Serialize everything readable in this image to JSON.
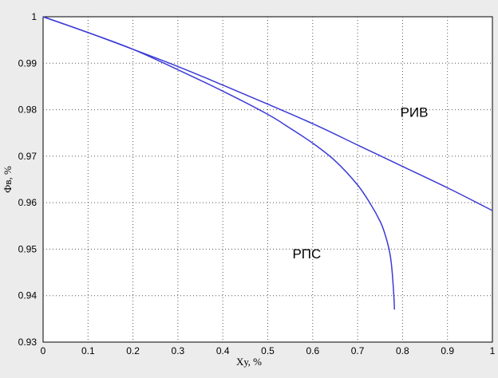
{
  "chart_data": {
    "type": "line",
    "title": "",
    "xlabel": "Xу, %",
    "ylabel": "Фв, %",
    "xlim": [
      0,
      1
    ],
    "ylim": [
      0.93,
      1
    ],
    "grid": true,
    "xticks": [
      "0",
      "0.1",
      "0.2",
      "0.3",
      "0.4",
      "0.5",
      "0.6",
      "0.7",
      "0.8",
      "0.9",
      "1"
    ],
    "yticks": [
      "0.93",
      "0.94",
      "0.95",
      "0.96",
      "0.97",
      "0.98",
      "0.99",
      "1"
    ],
    "series": [
      {
        "name": "РИВ",
        "color": "#3b3bd6",
        "x": [
          0,
          0.1,
          0.2,
          0.3,
          0.4,
          0.5,
          0.6,
          0.7,
          0.8,
          0.9,
          1.0
        ],
        "y": [
          1.0,
          0.9966,
          0.993,
          0.9893,
          0.9853,
          0.9812,
          0.977,
          0.9724,
          0.9678,
          0.9632,
          0.9583
        ]
      },
      {
        "name": "РПС",
        "color": "#3b3bd6",
        "x": [
          0,
          0.1,
          0.2,
          0.3,
          0.4,
          0.5,
          0.55,
          0.6,
          0.65,
          0.7,
          0.73,
          0.75,
          0.76,
          0.77,
          0.775,
          0.78,
          0.782
        ],
        "y": [
          1.0,
          0.9966,
          0.993,
          0.9886,
          0.984,
          0.979,
          0.976,
          0.9728,
          0.969,
          0.9638,
          0.9595,
          0.956,
          0.9535,
          0.95,
          0.947,
          0.941,
          0.937
        ]
      }
    ],
    "annotations": [
      {
        "text": "РИВ",
        "x": 0.795,
        "y": 0.9785
      },
      {
        "text": "РПС",
        "x": 0.555,
        "y": 0.948
      }
    ]
  }
}
